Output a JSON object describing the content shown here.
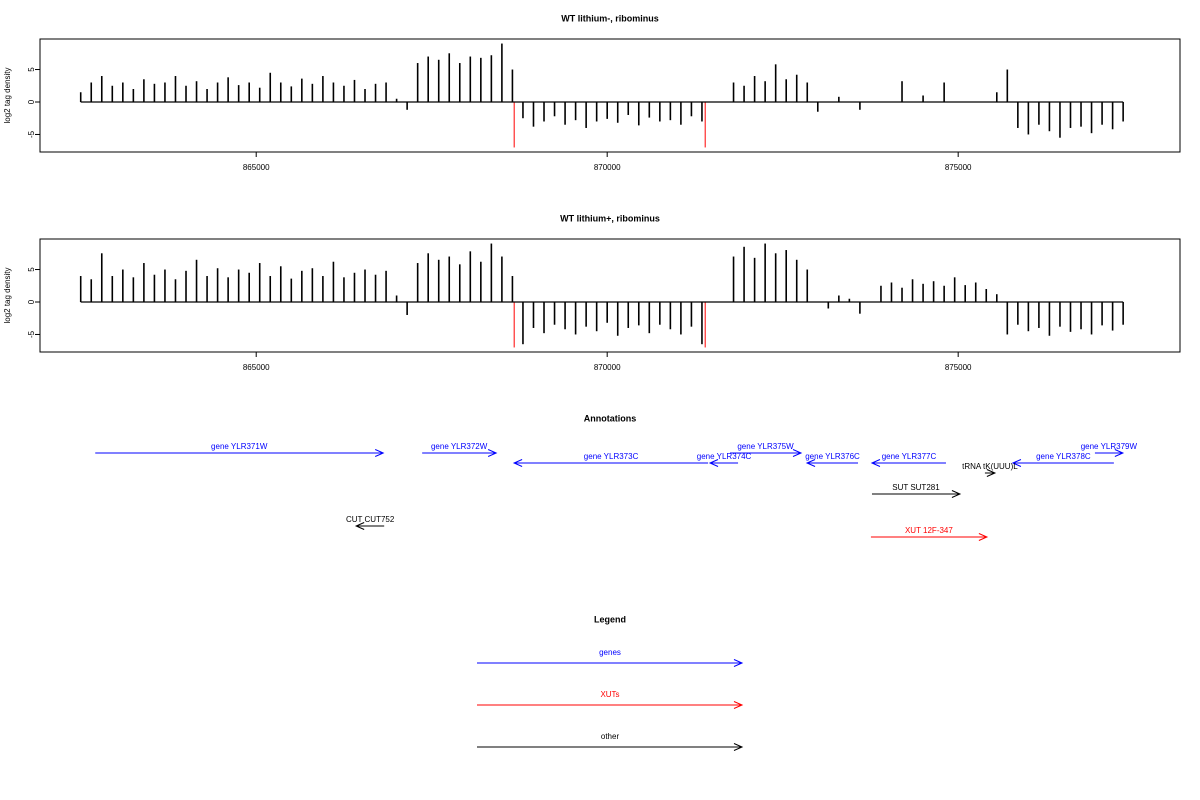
{
  "chart_data": [
    {
      "type": "spike",
      "title": "WT lithium-, ribominus",
      "ylabel": "log2 tag density",
      "color": "#000000",
      "xlim": [
        861920,
        878160
      ],
      "xticks": [
        865000,
        870000,
        875000
      ],
      "ylim": [
        -7.7,
        9.7
      ],
      "yticks": [
        5,
        0,
        -5
      ],
      "x0": 862500,
      "xstep": 150,
      "values": [
        1.5,
        3,
        4,
        2.5,
        3,
        2,
        3.5,
        2.8,
        3,
        4,
        2.5,
        3.2,
        2,
        3,
        3.8,
        2.6,
        3,
        2.2,
        4.5,
        3,
        2.4,
        3.6,
        2.8,
        4,
        3,
        2.5,
        3.4,
        2,
        2.8,
        3,
        0.5,
        -1.2,
        6,
        7,
        6.5,
        7.5,
        6,
        7,
        6.8,
        7.2,
        9,
        5,
        -2.5,
        -3.8,
        -3,
        -2.2,
        -3.5,
        -2.8,
        -4,
        -3,
        -2.6,
        -3.2,
        -2,
        -3.6,
        -2.4,
        -3,
        -2.8,
        -3.5,
        -2.2,
        -3,
        0,
        0,
        3,
        2.5,
        4,
        3.2,
        5.8,
        3.5,
        4.2,
        3,
        -1.5,
        0,
        0.8,
        0,
        -1.2,
        0,
        0,
        0,
        3.2,
        0,
        1,
        0,
        3,
        0,
        0,
        0,
        0,
        1.5,
        5,
        -4,
        -5,
        -3.5,
        -4.5,
        -5.5,
        -4,
        -3.8,
        -4.8,
        -3.5,
        -4.2,
        -3
      ],
      "markers": {
        "color": "#ff0000",
        "x": [
          868675,
          871396
        ],
        "values": [
          -7,
          -7
        ]
      }
    },
    {
      "type": "spike",
      "title": "WT lithium+, ribominus",
      "ylabel": "log2 tag density",
      "color": "#000000",
      "xlim": [
        861920,
        878160
      ],
      "xticks": [
        865000,
        870000,
        875000
      ],
      "ylim": [
        -7.7,
        9.7
      ],
      "yticks": [
        5,
        0,
        -5
      ],
      "x0": 862500,
      "xstep": 150,
      "values": [
        4,
        3.5,
        7.5,
        4,
        5,
        3.8,
        6,
        4.2,
        5,
        3.5,
        4.8,
        6.5,
        4,
        5.2,
        3.8,
        5,
        4.5,
        6,
        4,
        5.5,
        3.6,
        4.8,
        5.2,
        4,
        6.2,
        3.8,
        4.5,
        5,
        4.2,
        4.8,
        1,
        -2,
        6,
        7.5,
        6.5,
        7,
        5.8,
        7.8,
        6.2,
        9,
        7,
        4,
        -6.5,
        -4,
        -4.8,
        -3.5,
        -4.2,
        -5,
        -3.8,
        -4.5,
        -3.2,
        -5.2,
        -4,
        -3.6,
        -4.8,
        -3.5,
        -4.2,
        -5,
        -3.8,
        -6.5,
        0,
        0,
        7,
        8.5,
        6.8,
        9,
        7.5,
        8,
        6.5,
        5,
        0,
        -1,
        1,
        0.5,
        -1.8,
        0,
        2.5,
        3,
        2.2,
        3.5,
        2.8,
        3.2,
        2.5,
        3.8,
        2.6,
        3,
        2,
        1.2,
        -5,
        -3.5,
        -4.5,
        -4,
        -5.2,
        -3.8,
        -4.6,
        -4.2,
        -5,
        -3.6,
        -4.4,
        -3.5
      ],
      "markers": {
        "color": "#ff0000",
        "x": [
          868675,
          871396
        ],
        "values": [
          -7,
          -7
        ]
      }
    }
  ],
  "annotations": {
    "title": "Annotations",
    "items": [
      {
        "label": "gene YLR371W",
        "start": 862707,
        "end": 866809,
        "color": "#0000ff"
      },
      {
        "label": "gene YLR372W",
        "start": 867364,
        "end": 868418,
        "color": "#0000ff"
      },
      {
        "label": "gene YLR373C",
        "start": 871437,
        "end": 868674,
        "color": "#0000ff"
      },
      {
        "label": "gene YLR374C",
        "start": 871864,
        "end": 871465,
        "color": "#0000ff"
      },
      {
        "label": "gene YLR375W",
        "start": 871750,
        "end": 872761,
        "color": "#0000ff"
      },
      {
        "label": "gene YLR376C",
        "start": 873573,
        "end": 872847,
        "color": "#0000ff"
      },
      {
        "label": "gene YLR377C",
        "start": 874826,
        "end": 873772,
        "color": "#0000ff"
      },
      {
        "label": "gene YLR378C",
        "start": 877218,
        "end": 875780,
        "color": "#0000ff"
      },
      {
        "label": "gene YLR379W",
        "start": 876948,
        "end": 877346,
        "color": "#0000ff"
      },
      {
        "label": "tRNA tK(UUU)L",
        "start": 875381,
        "end": 875523,
        "color": "#000000"
      },
      {
        "label": "SUT SUT281",
        "start": 873772,
        "end": 875025,
        "color": "#000000"
      },
      {
        "label": "CUT CUT752",
        "start": 866823,
        "end": 866424,
        "color": "#000000"
      },
      {
        "label": "XUT 12F-347",
        "start": 873757,
        "end": 875409,
        "color": "#ff0000"
      }
    ]
  },
  "legend": {
    "title": "Legend",
    "items": [
      {
        "label": "genes",
        "color": "#0000ff"
      },
      {
        "label": "XUTs",
        "color": "#ff0000"
      },
      {
        "label": "other",
        "color": "#000000"
      }
    ]
  }
}
